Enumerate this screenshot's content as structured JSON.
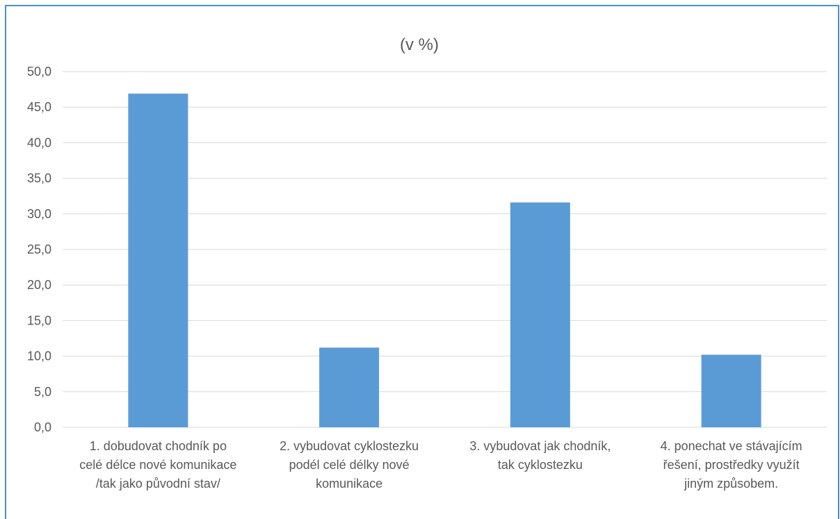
{
  "chart_data": {
    "type": "bar",
    "title": "(v %)",
    "xlabel": "",
    "ylabel": "",
    "ylim": [
      0,
      50
    ],
    "yticks": [
      "0,0",
      "5,0",
      "10,0",
      "15,0",
      "20,0",
      "25,0",
      "30,0",
      "35,0",
      "40,0",
      "45,0",
      "50,0"
    ],
    "grid": true,
    "legend": "none",
    "bar_color": "#5b9bd5",
    "categories": [
      [
        "1. dobudovat chodník po",
        "celé délce nové komunikace",
        "/tak jako původní stav/"
      ],
      [
        "2. vybudovat cyklostezku",
        "podél celé délky nové",
        "komunikace"
      ],
      [
        "3. vybudovat jak chodník,",
        "tak cyklostezku"
      ],
      [
        "4. ponechat ve stávajícím",
        "řešení, prostředky využít",
        "jiným způsobem."
      ]
    ],
    "values": [
      46.9,
      11.2,
      31.6,
      10.2
    ]
  },
  "colors": {
    "frame": "#4a90c8",
    "grid": "#d9d9d9",
    "text": "#595959"
  }
}
